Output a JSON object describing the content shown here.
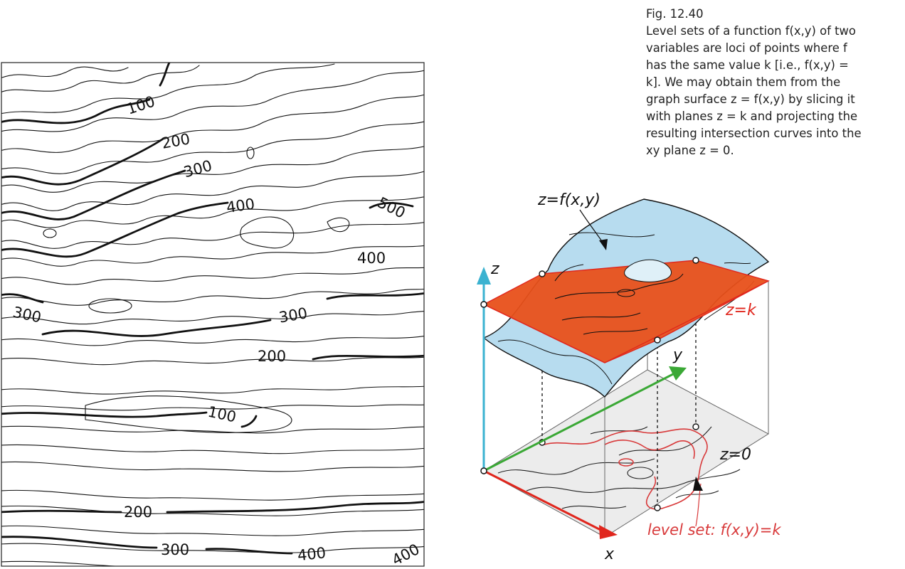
{
  "caption": {
    "figure": "Fig. 12.40",
    "lines": [
      "Level sets of a function f(x,y) of two",
      "variables are loci of points where f",
      "has the same value k [i.e., f(x,y) =",
      "k]. We may obtain them from the",
      "graph surface z = f(x,y) by slicing it",
      "with planes z = k and projecting the",
      "resulting intersection curves into the",
      "xy plane z = 0."
    ]
  },
  "contour_map": {
    "labels": [
      "100",
      "200",
      "300",
      "400",
      "500",
      "400",
      "300",
      "300",
      "200",
      "100",
      "200",
      "300",
      "400",
      "400"
    ]
  },
  "diagram": {
    "surface_label": "z=f(x,y)",
    "plane_label": "z=k",
    "base_label": "z=0",
    "axis_x": "x",
    "axis_y": "y",
    "axis_z": "z",
    "level_set_label": "level set: f(x,y)=k"
  },
  "colors": {
    "slice_plane": "#e8501a",
    "surface": "#b7dcef",
    "z_axis": "#3bb2d0",
    "y_axis": "#3aa835",
    "x_axis": "#e0261d",
    "level_set": "#d8393a",
    "base_plane": "#ececec"
  }
}
